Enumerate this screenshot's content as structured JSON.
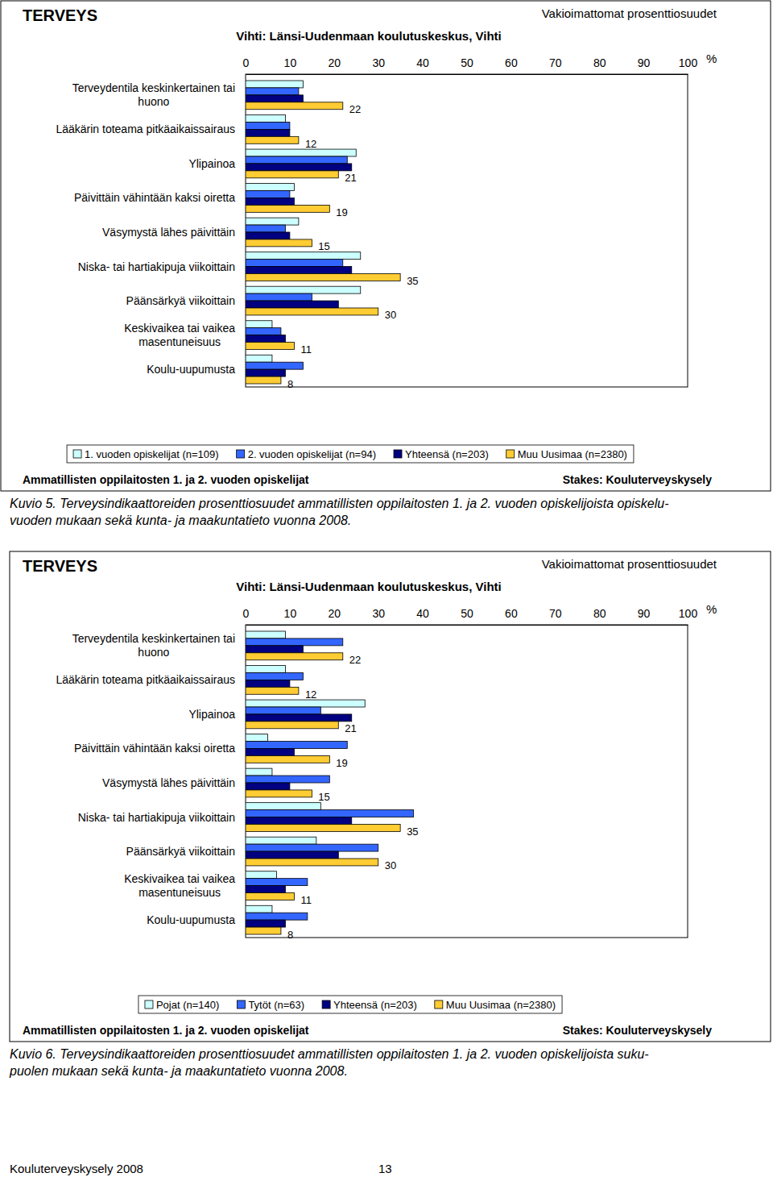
{
  "chart_data": [
    {
      "type": "bar",
      "orientation": "horizontal",
      "title": "TERVEYS",
      "subtitle": "Vihti: Länsi-Uudenmaan koulutuskeskus, Vihti",
      "note": "Vakioimattomat prosenttiosuudet",
      "footnote": "Ammatillisten oppilaitosten 1. ja 2. vuoden opiskelijat",
      "source": "Stakes: Kouluterveyskysely",
      "caption": [
        "Kuvio 5. Terveysindikaattoreiden prosenttiosuudet ammatillisten oppilaitosten 1. ja 2. vuoden opiskelijoista opiskelu-",
        "vuoden mukaan sekä kunta- ja maakuntatieto vuonna 2008."
      ],
      "xlabel": "%",
      "categories": [
        "Terveydentila keskinkertainen tai huono",
        "Lääkärin toteama pitkäaikaissairaus",
        "Ylipainoa",
        "Päivittäin vähintään kaksi oiretta",
        "Väsymystä lähes päivittäin",
        "Niska- tai hartiakipuja viikoittain",
        "Päänsärkyä viikoittain",
        "Keskivaikea tai vaikea masentuneisuus",
        "Koulu-uupumusta"
      ],
      "xlim": [
        0,
        100
      ],
      "xticks": [
        0,
        10,
        20,
        30,
        40,
        50,
        60,
        70,
        80,
        90,
        100
      ],
      "grid": false,
      "legend": "bottom",
      "series": [
        {
          "name": "1. vuoden opiskelijat (n=109)",
          "color": "#ccffff",
          "values": [
            13,
            9,
            25,
            11,
            12,
            26,
            26,
            6,
            6
          ]
        },
        {
          "name": "2. vuoden opiskelijat (n=94)",
          "color": "#3366ff",
          "values": [
            12,
            10,
            23,
            10,
            9,
            22,
            15,
            8,
            13
          ]
        },
        {
          "name": "Yhteensä (n=203)",
          "color": "#000080",
          "values": [
            13,
            10,
            24,
            11,
            10,
            24,
            21,
            9,
            9
          ]
        },
        {
          "name": "Muu Uusimaa (n=2380)",
          "color": "#ffcc33",
          "values": [
            22,
            12,
            21,
            19,
            15,
            35,
            30,
            11,
            8
          ],
          "data_labels": true
        }
      ]
    },
    {
      "type": "bar",
      "orientation": "horizontal",
      "title": "TERVEYS",
      "subtitle": "Vihti: Länsi-Uudenmaan koulutuskeskus, Vihti",
      "note": "Vakioimattomat prosenttiosuudet",
      "footnote": "Ammatillisten oppilaitosten 1. ja 2. vuoden opiskelijat",
      "source": "Stakes: Kouluterveyskysely",
      "caption": [
        "Kuvio 6. Terveysindikaattoreiden prosenttiosuudet ammatillisten oppilaitosten 1. ja 2. vuoden opiskelijoista suku-",
        "puolen mukaan sekä kunta- ja maakuntatieto vuonna 2008."
      ],
      "xlabel": "%",
      "categories": [
        "Terveydentila keskinkertainen tai huono",
        "Lääkärin toteama pitkäaikaissairaus",
        "Ylipainoa",
        "Päivittäin vähintään kaksi oiretta",
        "Väsymystä lähes päivittäin",
        "Niska- tai hartiakipuja viikoittain",
        "Päänsärkyä viikoittain",
        "Keskivaikea tai vaikea masentuneisuus",
        "Koulu-uupumusta"
      ],
      "xlim": [
        0,
        100
      ],
      "xticks": [
        0,
        10,
        20,
        30,
        40,
        50,
        60,
        70,
        80,
        90,
        100
      ],
      "grid": false,
      "legend": "bottom",
      "series": [
        {
          "name": "Pojat (n=140)",
          "color": "#ccffff",
          "values": [
            9,
            9,
            27,
            5,
            6,
            17,
            16,
            7,
            6
          ]
        },
        {
          "name": "Tytöt (n=63)",
          "color": "#3366ff",
          "values": [
            22,
            13,
            17,
            23,
            19,
            38,
            30,
            14,
            14
          ]
        },
        {
          "name": "Yhteensä (n=203)",
          "color": "#000080",
          "values": [
            13,
            10,
            24,
            11,
            10,
            24,
            21,
            9,
            9
          ]
        },
        {
          "name": "Muu Uusimaa (n=2380)",
          "color": "#ffcc33",
          "values": [
            22,
            12,
            21,
            19,
            15,
            35,
            30,
            11,
            8
          ],
          "data_labels": true
        }
      ]
    }
  ],
  "page": {
    "footer": "Kouluterveyskysely 2008",
    "page_number": 13
  }
}
